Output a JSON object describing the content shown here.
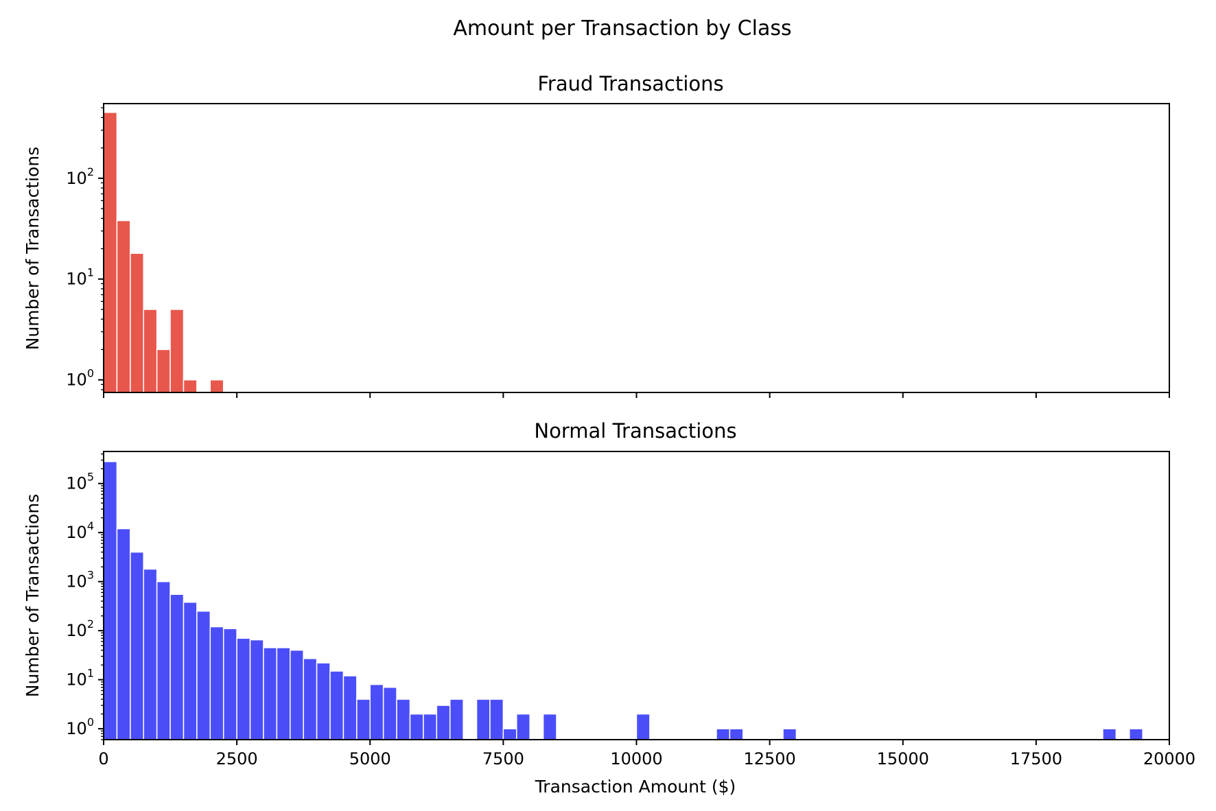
{
  "chart_data": {
    "title": "Amount per Transaction by Class",
    "shared_x": {
      "xlabel": "Transaction Amount ($)",
      "xlim": [
        0,
        20000
      ],
      "ticks": [
        0,
        2500,
        5000,
        7500,
        10000,
        12500,
        15000,
        17500,
        20000
      ],
      "tick_labels": [
        "0",
        "2500",
        "5000",
        "7500",
        "10000",
        "12500",
        "15000",
        "17500",
        "20000"
      ]
    },
    "charts": [
      {
        "type": "bar",
        "title": "Fraud Transactions",
        "ylabel": "Number of Transactions",
        "color": "#e8574c",
        "y_scale": "log",
        "ylim": [
          0.75,
          550
        ],
        "y_ticks": [
          {
            "base": "10",
            "exp": "0",
            "value": 1
          },
          {
            "base": "10",
            "exp": "1",
            "value": 10
          },
          {
            "base": "10",
            "exp": "2",
            "value": 100
          }
        ],
        "bins": [
          {
            "x0": 0,
            "x1": 250,
            "count": 450
          },
          {
            "x0": 250,
            "x1": 500,
            "count": 38
          },
          {
            "x0": 500,
            "x1": 750,
            "count": 18
          },
          {
            "x0": 750,
            "x1": 1000,
            "count": 5
          },
          {
            "x0": 1000,
            "x1": 1250,
            "count": 2
          },
          {
            "x0": 1250,
            "x1": 1500,
            "count": 5
          },
          {
            "x0": 1500,
            "x1": 1750,
            "count": 1
          },
          {
            "x0": 2000,
            "x1": 2250,
            "count": 1
          }
        ]
      },
      {
        "type": "bar",
        "title": "Normal Transactions",
        "ylabel": "Number of Transactions",
        "color": "#4b4ef8",
        "y_scale": "log",
        "ylim": [
          0.6,
          450000
        ],
        "y_ticks": [
          {
            "base": "10",
            "exp": "0",
            "value": 1
          },
          {
            "base": "10",
            "exp": "1",
            "value": 10
          },
          {
            "base": "10",
            "exp": "2",
            "value": 100
          },
          {
            "base": "10",
            "exp": "3",
            "value": 1000
          },
          {
            "base": "10",
            "exp": "4",
            "value": 10000
          },
          {
            "base": "10",
            "exp": "5",
            "value": 100000
          }
        ],
        "bins": [
          {
            "x0": 0,
            "x1": 250,
            "count": 280000
          },
          {
            "x0": 250,
            "x1": 500,
            "count": 12000
          },
          {
            "x0": 500,
            "x1": 750,
            "count": 4000
          },
          {
            "x0": 750,
            "x1": 1000,
            "count": 1800
          },
          {
            "x0": 1000,
            "x1": 1250,
            "count": 1000
          },
          {
            "x0": 1250,
            "x1": 1500,
            "count": 550
          },
          {
            "x0": 1500,
            "x1": 1750,
            "count": 380
          },
          {
            "x0": 1750,
            "x1": 2000,
            "count": 250
          },
          {
            "x0": 2000,
            "x1": 2250,
            "count": 120
          },
          {
            "x0": 2250,
            "x1": 2500,
            "count": 110
          },
          {
            "x0": 2500,
            "x1": 2750,
            "count": 70
          },
          {
            "x0": 2750,
            "x1": 3000,
            "count": 65
          },
          {
            "x0": 3000,
            "x1": 3250,
            "count": 45
          },
          {
            "x0": 3250,
            "x1": 3500,
            "count": 45
          },
          {
            "x0": 3500,
            "x1": 3750,
            "count": 40
          },
          {
            "x0": 3750,
            "x1": 4000,
            "count": 27
          },
          {
            "x0": 4000,
            "x1": 4250,
            "count": 22
          },
          {
            "x0": 4250,
            "x1": 4500,
            "count": 15
          },
          {
            "x0": 4500,
            "x1": 4750,
            "count": 12
          },
          {
            "x0": 4750,
            "x1": 5000,
            "count": 4
          },
          {
            "x0": 5000,
            "x1": 5250,
            "count": 8
          },
          {
            "x0": 5250,
            "x1": 5500,
            "count": 7
          },
          {
            "x0": 5500,
            "x1": 5750,
            "count": 4
          },
          {
            "x0": 5750,
            "x1": 6000,
            "count": 2
          },
          {
            "x0": 6000,
            "x1": 6250,
            "count": 2
          },
          {
            "x0": 6250,
            "x1": 6500,
            "count": 3
          },
          {
            "x0": 6500,
            "x1": 6750,
            "count": 4
          },
          {
            "x0": 7000,
            "x1": 7250,
            "count": 4
          },
          {
            "x0": 7250,
            "x1": 7500,
            "count": 4
          },
          {
            "x0": 7500,
            "x1": 7750,
            "count": 1
          },
          {
            "x0": 7750,
            "x1": 8000,
            "count": 2
          },
          {
            "x0": 8250,
            "x1": 8500,
            "count": 2
          },
          {
            "x0": 10000,
            "x1": 10250,
            "count": 2
          },
          {
            "x0": 11500,
            "x1": 11750,
            "count": 1
          },
          {
            "x0": 11750,
            "x1": 12000,
            "count": 1
          },
          {
            "x0": 12750,
            "x1": 13000,
            "count": 1
          },
          {
            "x0": 18750,
            "x1": 19000,
            "count": 1
          },
          {
            "x0": 19250,
            "x1": 19500,
            "count": 1
          }
        ]
      }
    ]
  }
}
